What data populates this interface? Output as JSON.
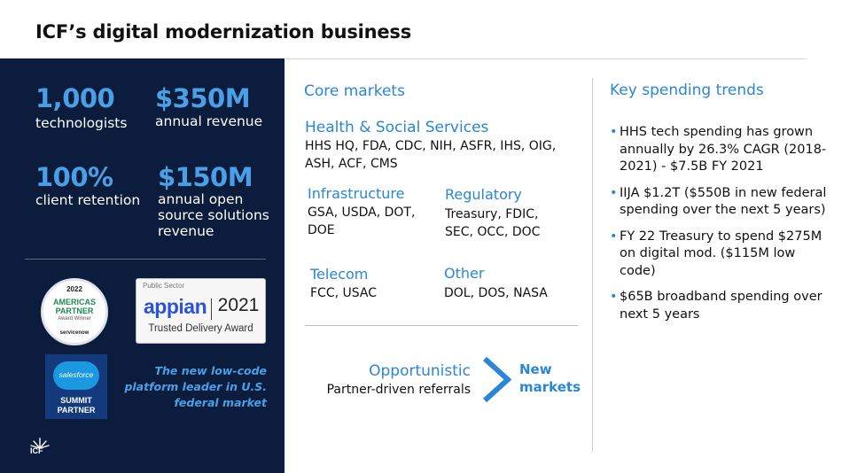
{
  "title": "ICF’s digital modernization business",
  "stats": [
    {
      "value": "1,000",
      "label": "technologists"
    },
    {
      "value": "$350M",
      "label": "annual revenue"
    },
    {
      "value": "100%",
      "label": "client retention"
    },
    {
      "value": "$150M",
      "label": "annual open source solutions revenue"
    }
  ],
  "badges": {
    "servicenow": {
      "year": "2022",
      "line1": "AMERICAS",
      "line2": "PARTNER",
      "line3": "Award Winner",
      "brand": "servicenow"
    },
    "appian": {
      "sector": "Public Sector",
      "logo": "appian",
      "year": "2021",
      "award": "Trusted Delivery Award"
    },
    "salesforce": {
      "logo": "salesforce",
      "line1": "SUMMIT",
      "line2": "PARTNER"
    }
  },
  "quote": "The new low-code platform leader in U.S. federal market",
  "brand_logo": "ICF",
  "core_markets": {
    "heading": "Core markets",
    "health": {
      "title": "Health & Social Services",
      "body": "HHS HQ, FDA, CDC, NIH, ASFR, IHS, OIG, ASH, ACF, CMS"
    },
    "infrastructure": {
      "title": "Infrastructure",
      "body": "GSA, USDA, DOT, DOE"
    },
    "regulatory": {
      "title": "Regulatory",
      "body": "Treasury, FDIC, SEC, OCC, DOC"
    },
    "telecom": {
      "title": "Telecom",
      "body": "FCC, USAC"
    },
    "other": {
      "title": "Other",
      "body": "DOL, DOS, NASA"
    },
    "opportunistic": {
      "title": "Opportunistic",
      "body": "Partner-driven referrals"
    },
    "new_markets": "New markets"
  },
  "trends": {
    "heading": "Key spending trends",
    "items": [
      "HHS tech spending has grown annually by 26.3% CAGR (2018-2021) - $7.5B FY 2021",
      "IIJA $1.2T ($550B in new federal spending over the next 5 years)",
      "FY 22 Treasury to spend $275M on digital mod. ($115M low code)",
      "$65B broadband spending over next 5 years"
    ]
  },
  "colors": {
    "panel": "#0c1c3c",
    "accent_blue": "#2a86d6",
    "stat_blue": "#4aa0e6"
  }
}
